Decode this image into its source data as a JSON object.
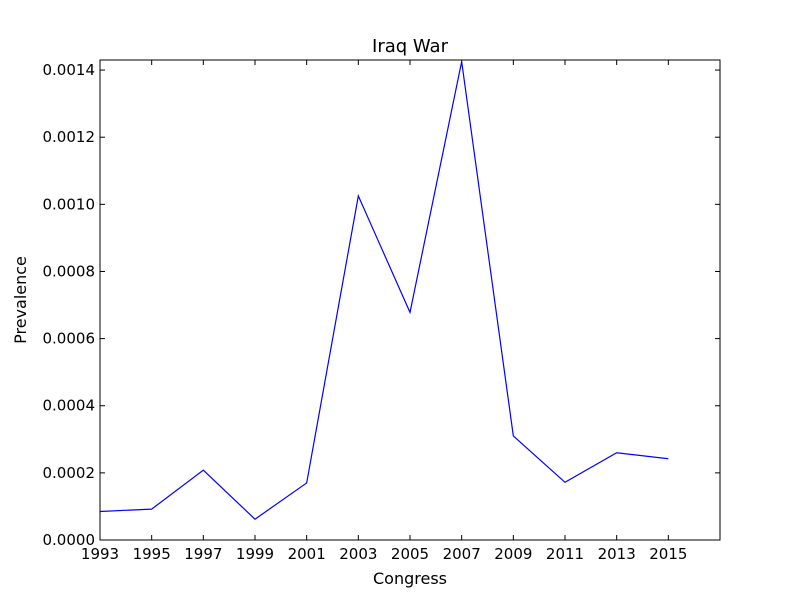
{
  "chart_data": {
    "type": "line",
    "title": "Iraq War",
    "xlabel": "Congress",
    "ylabel": "Prevalence",
    "x": [
      1993,
      1995,
      1997,
      1999,
      2001,
      2003,
      2005,
      2007,
      2009,
      2011,
      2013,
      2015
    ],
    "series": [
      {
        "values": [
          8.5e-05,
          9.2e-05,
          0.000208,
          6.2e-05,
          0.00017,
          0.001025,
          0.000678,
          0.001425,
          0.00031,
          0.000172,
          0.00026,
          0.000242
        ],
        "color": "#0000ff"
      }
    ],
    "xlim": [
      1993,
      2017
    ],
    "ylim": [
      0,
      0.00143
    ],
    "xticks": [
      1993,
      1995,
      1997,
      1999,
      2001,
      2003,
      2005,
      2007,
      2009,
      2011,
      2013,
      2015
    ],
    "xtick_labels": [
      "1993",
      "1995",
      "1997",
      "1999",
      "2001",
      "2003",
      "2005",
      "2007",
      "2009",
      "2011",
      "2013",
      "2015"
    ],
    "yticks": [
      0,
      0.0002,
      0.0004,
      0.0006,
      0.0008,
      0.001,
      0.0012,
      0.0014
    ],
    "ytick_labels": [
      "0.0000",
      "0.0002",
      "0.0004",
      "0.0006",
      "0.0008",
      "0.0010",
      "0.0012",
      "0.0014"
    ],
    "grid": false,
    "legend": "none"
  }
}
